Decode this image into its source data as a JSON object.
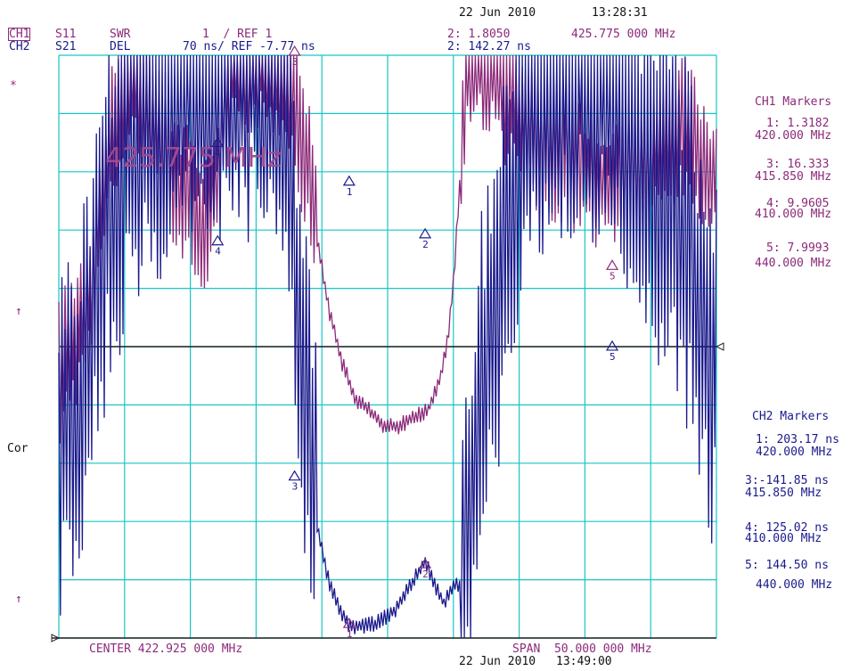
{
  "header": {
    "date_top": "22 Jun 2010",
    "time_top": "13:28:31",
    "ch1_label": "CH1",
    "ch1_param": "S11",
    "ch1_format": "SWR",
    "ch1_scale": "1  / REF 1",
    "ch2_label": "CH2",
    "ch2_param": "S21",
    "ch2_format": "DEL",
    "ch2_scale": "70 ns/ REF -7.77 ns",
    "active_marker_ch1": "2: 1.8050",
    "active_marker_ch2": "2: 142.27 ns",
    "active_freq": "425.775 000 MHz",
    "big_freq": "425.775 MHz"
  },
  "footer": {
    "center": "CENTER 422.925 000 MHz",
    "span": "SPAN  50.000 000 MHz",
    "date_bottom": "22 Jun 2010",
    "time_bottom": "13:49:00"
  },
  "side": {
    "star": "*",
    "arrow_top": "↑",
    "cor": "Cor",
    "arrow_bottom": "↑"
  },
  "ch1_markers": {
    "title": "CH1 Markers",
    "items": [
      {
        "id": "1",
        "value": "1: 1.3182",
        "freq": "420.000 MHz"
      },
      {
        "id": "3",
        "value": "3: 16.333",
        "freq": "415.850 MHz"
      },
      {
        "id": "4",
        "value": "4: 9.9605",
        "freq": "410.000 MHz"
      },
      {
        "id": "5",
        "value": "5: 7.9993",
        "freq": "440.000 MHz"
      }
    ]
  },
  "ch2_markers": {
    "title": "CH2 Markers",
    "items": [
      {
        "id": "1",
        "value": "1: 203.17 ns",
        "freq": "420.000 MHz"
      },
      {
        "id": "3",
        "value": "3:-141.85 ns",
        "freq": "415.850 MHz"
      },
      {
        "id": "4",
        "value": "4: 125.02 ns",
        "freq": "410.000 MHz"
      },
      {
        "id": "5",
        "value": "5: 144.50 ns",
        "freq": "440.000 MHz"
      }
    ]
  },
  "colors": {
    "ch1": "#8c2a7a",
    "ch2": "#1a1a8c",
    "grid": "#19c6c6",
    "ref": "#222222"
  },
  "chart_data": {
    "type": "line",
    "grid": true,
    "x_range_mhz": [
      397.925,
      447.925
    ],
    "x_divisions": 10,
    "y_divisions": 10,
    "marker_labels": [
      "1",
      "2",
      "3",
      "4",
      "5"
    ],
    "series": [
      {
        "format": "SWR",
        "x": [
          397.9,
          399.5,
          400.5,
          401.5,
          403.5,
          405.5,
          407.5,
          409.5,
          411,
          413,
          414.5,
          415.5,
          417,
          417.5,
          418.5,
          419.5,
          420.5,
          421.5,
          422.5,
          423.5,
          424.5,
          425.5,
          426,
          426.5,
          427,
          427.5,
          428,
          429,
          430.5,
          431.5,
          433.5,
          435.5,
          437.5,
          439.5,
          441.5,
          443.5,
          445.5,
          447.9
        ],
        "y": [
          7.5,
          9.0,
          10.5,
          13.5,
          16.0,
          14.5,
          12.5,
          12.0,
          16.3,
          16.5,
          16.4,
          16.0,
          13.0,
          11.5,
          9.3,
          7.8,
          6.8,
          6.5,
          6.1,
          6.0,
          6.2,
          6.4,
          6.5,
          7.0,
          7.5,
          8.5,
          10.5,
          16.5,
          16.5,
          15.8,
          14.5,
          14.0,
          13.5,
          13.0,
          13.5,
          13.8,
          14.5,
          13.0
        ]
      },
      {
        "format": "DEL",
        "x": [
          397.9,
          399.5,
          401.5,
          403.5,
          405.5,
          407.5,
          409.5,
          411,
          413,
          414.5,
          415,
          415.5,
          416,
          416.5,
          417.5,
          418.5,
          420,
          422,
          423.5,
          425,
          425.8,
          426.5,
          427.2,
          428,
          428.5,
          429,
          430,
          431.5,
          433.5,
          435.5,
          437.5,
          439.5,
          441.5,
          443.5,
          445.5,
          447.9
        ],
        "y": [
          5.5,
          6.5,
          12.0,
          14.5,
          15.0,
          16.5,
          16.6,
          16.6,
          16.6,
          16.6,
          16.0,
          13.5,
          10.0,
          7.5,
          3.3,
          1.5,
          0.3,
          0.4,
          0.8,
          1.7,
          2.2,
          1.5,
          1.0,
          1.5,
          1.4,
          2.7,
          6.5,
          10.5,
          15.0,
          16.5,
          16.6,
          16.6,
          14.3,
          12.5,
          11.5,
          7.5
        ]
      }
    ]
  }
}
